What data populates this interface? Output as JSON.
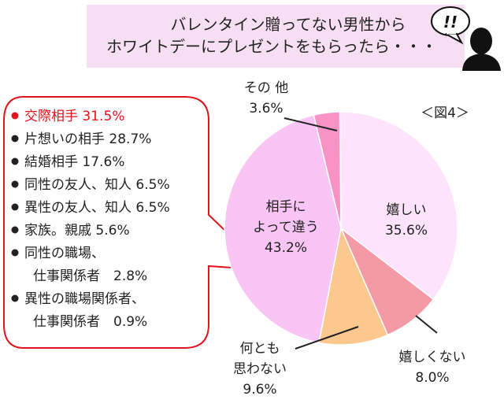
{
  "header": {
    "line1": "バレンタイン贈ってない男性から",
    "line2": "ホワイトデーにプレゼントをもらったら・・・",
    "exclaim": "!!"
  },
  "figure_label": "＜図4＞",
  "callout": {
    "items": [
      {
        "text": "交際相手 31.5%",
        "highlight": true
      },
      {
        "text": "片想いの相手 28.7%"
      },
      {
        "text": "結婚相手 17.6%"
      },
      {
        "text": "同性の友人、知人 6.5%"
      },
      {
        "text": "異性の友人、知人 6.5%"
      },
      {
        "text": "家族。親戚 5.6%"
      },
      {
        "text": "同性の職場、",
        "cont": "仕事関係者　2.8%"
      },
      {
        "text": "異性の職場関係者、",
        "cont": "仕事関係者　0.9%"
      }
    ]
  },
  "colors": {
    "header_bg": "#f7dff3",
    "callout_border": "#e0141e",
    "highlight_text": "#e0141e",
    "slice_happy": "#fde3fb",
    "slice_not_happy": "#f49aa6",
    "slice_nothing": "#fcc88e",
    "slice_depends": "#f9c5f5",
    "slice_other": "#f993c6"
  },
  "chart_data": {
    "type": "pie",
    "slices": [
      {
        "label": "嬉しい",
        "value": 35.6,
        "value_text": "35.6%",
        "color": "#fde3fb"
      },
      {
        "label": "嬉しくない",
        "value": 8.0,
        "value_text": "8.0%",
        "color": "#f49aa6"
      },
      {
        "label": "何とも\n思わない",
        "value": 9.6,
        "value_text": "9.6%",
        "color": "#fcc88e"
      },
      {
        "label": "相手に\nよって違う",
        "value": 43.2,
        "value_text": "43.2%",
        "color": "#f9c5f5"
      },
      {
        "label": "その 他",
        "value": 3.6,
        "value_text": "3.6%",
        "color": "#f993c6"
      }
    ]
  }
}
